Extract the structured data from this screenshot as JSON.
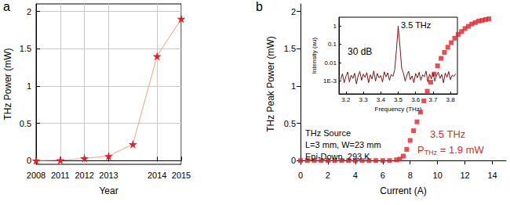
{
  "chart_data": [
    {
      "type": "line",
      "title": "a",
      "x_label": "Year",
      "y_label": "THz Power (mW)",
      "categories": [
        "2008",
        "2011",
        "2012",
        "2013",
        null,
        "2014",
        "2015"
      ],
      "values": [
        0,
        0.005,
        0.03,
        0.06,
        0.22,
        1.4,
        1.9
      ],
      "color": "#e41f26",
      "marker": "star",
      "line_style": "solid",
      "ylim": [
        -0.05,
        2.1
      ],
      "yticks": [
        0,
        0.5,
        1,
        1.5,
        2
      ],
      "grid": true
    },
    {
      "type": "scatter",
      "title": "b",
      "x_label": "Current (A)",
      "y_label": "THz Peak Power (mW)",
      "x": [
        0,
        0.5,
        1,
        1.5,
        2,
        2.5,
        3,
        3.5,
        4,
        4.5,
        5,
        5.5,
        6,
        6.5,
        7,
        7.25,
        7.5,
        7.75,
        8,
        8.25,
        8.5,
        8.75,
        9,
        9.25,
        9.5,
        9.75,
        10,
        10.25,
        10.5,
        10.75,
        11,
        11.25,
        11.5,
        11.75,
        12,
        12.25,
        12.5,
        12.75,
        13,
        13.25,
        13.5,
        13.75
      ],
      "values": [
        0,
        0,
        0,
        0,
        0,
        0,
        0,
        0,
        0,
        0,
        0,
        0,
        0,
        0,
        0.01,
        0.02,
        0.06,
        0.15,
        0.27,
        0.4,
        0.52,
        0.65,
        0.8,
        0.93,
        1.05,
        1.16,
        1.27,
        1.37,
        1.45,
        1.52,
        1.58,
        1.64,
        1.69,
        1.73,
        1.77,
        1.8,
        1.83,
        1.85,
        1.87,
        1.88,
        1.89,
        1.9
      ],
      "color": "#e41f26",
      "marker": "square",
      "xlim": [
        0,
        15
      ],
      "xticks": [
        0,
        2,
        4,
        6,
        8,
        10,
        12,
        14
      ],
      "ylim": [
        -0.05,
        2.1
      ],
      "yticks": [
        0,
        0.5,
        1,
        1.5,
        2
      ],
      "grid": false,
      "annotations": [
        {
          "text": "THz Source"
        },
        {
          "text": "L=3 mm, W=23 mm"
        },
        {
          "text": "Epi-Down, 293 K"
        },
        {
          "text": "3.5 THz",
          "color": "#e41f26"
        },
        {
          "text": "P",
          "subscript": "THz",
          "suffix": " = 1.9 mW",
          "color": "#e41f26"
        }
      ]
    },
    {
      "type": "line",
      "x_label": "Frequency (THz)",
      "y_label": "Intensity (au)",
      "x": [
        3.17,
        3.18,
        3.19,
        3.2,
        3.21,
        3.22,
        3.23,
        3.24,
        3.25,
        3.26,
        3.27,
        3.28,
        3.29,
        3.3,
        3.31,
        3.32,
        3.33,
        3.34,
        3.35,
        3.36,
        3.37,
        3.38,
        3.39,
        3.4,
        3.41,
        3.42,
        3.43,
        3.44,
        3.45,
        3.46,
        3.47,
        3.48,
        3.49,
        3.5,
        3.51,
        3.52,
        3.53,
        3.54,
        3.55,
        3.56,
        3.57,
        3.58,
        3.59,
        3.6,
        3.61,
        3.62,
        3.63,
        3.64,
        3.65,
        3.66,
        3.67,
        3.68,
        3.69,
        3.7,
        3.71,
        3.72,
        3.73,
        3.74,
        3.75,
        3.76,
        3.77,
        3.78,
        3.79,
        3.8,
        3.81,
        3.82,
        3.83
      ],
      "values": [
        0.0012,
        0.0025,
        0.0008,
        0.0018,
        0.0031,
        0.0009,
        0.0021,
        0.0014,
        0.0027,
        0.0007,
        0.0019,
        0.0033,
        0.0011,
        0.0024,
        0.0016,
        0.0029,
        0.0008,
        0.0022,
        0.0013,
        0.0036,
        0.001,
        0.0026,
        0.0015,
        0.002,
        0.0009,
        0.0032,
        0.0017,
        0.0028,
        0.0011,
        0.0023,
        0.0018,
        0.004,
        0.05,
        1,
        0.08,
        0.005,
        0.0027,
        0.001,
        0.0021,
        0.0034,
        0.0012,
        0.0019,
        0.0008,
        0.0026,
        0.0015,
        0.003,
        0.0011,
        0.0022,
        0.0017,
        0.0035,
        0.0009,
        0.0024,
        0.0013,
        0.0028,
        0.001,
        0.002,
        0.0031,
        0.0014,
        0.0023,
        0.0008,
        0.0027,
        0.0016,
        0.0033,
        0.0012,
        0.0021,
        0.0018,
        0.0025
      ],
      "color": "#7a1616",
      "marker": "none",
      "line_style": "solid",
      "log": "y",
      "xlim": [
        3.16,
        3.84
      ],
      "xticks": [
        3.2,
        3.3,
        3.4,
        3.5,
        3.6,
        3.7,
        3.8
      ],
      "ylim": [
        0.0002,
        3
      ],
      "yticks": [
        {
          "value": 0.001,
          "label": "1E-3"
        },
        0.01,
        0.1,
        1
      ],
      "grid": false,
      "annotations": [
        {
          "text": "3.5 THz"
        },
        {
          "text": "30 dB"
        }
      ]
    }
  ]
}
